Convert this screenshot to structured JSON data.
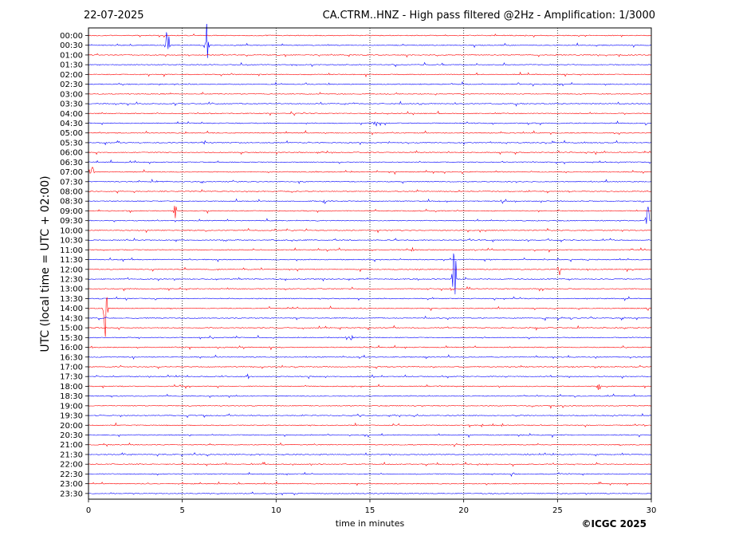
{
  "header": {
    "date": "22-07-2025",
    "title": "CA.CTRM..HNZ - High pass filtered @2Hz - Amplification: 1/3000"
  },
  "footer": {
    "copyright": "©ICGC 2025"
  },
  "chart_data": {
    "type": "line",
    "plot_kind": "helicorder",
    "xlabel": "time in minutes",
    "ylabel": "UTC (local time = UTC + 02:00)",
    "xlim": [
      0,
      30
    ],
    "xticks": [
      0,
      5,
      10,
      15,
      20,
      25,
      30
    ],
    "vertical_grid": [
      5,
      10,
      15,
      20,
      25
    ],
    "trace_colors": [
      "#ff0000",
      "#0000ff"
    ],
    "rows": [
      "00:00",
      "00:30",
      "01:00",
      "01:30",
      "02:00",
      "02:30",
      "03:00",
      "03:30",
      "04:00",
      "04:30",
      "05:00",
      "05:30",
      "06:00",
      "06:30",
      "07:00",
      "07:30",
      "08:00",
      "08:30",
      "09:00",
      "09:30",
      "10:00",
      "10:30",
      "11:00",
      "11:30",
      "12:00",
      "12:30",
      "13:00",
      "13:30",
      "14:00",
      "14:30",
      "15:00",
      "15:30",
      "16:00",
      "16:30",
      "17:00",
      "17:30",
      "18:00",
      "18:30",
      "19:00",
      "19:30",
      "20:00",
      "20:30",
      "21:00",
      "21:30",
      "22:00",
      "22:30",
      "23:00",
      "23:30"
    ],
    "events": [
      {
        "row": "00:30",
        "minute": 4.2,
        "amplitude": 2.5
      },
      {
        "row": "00:30",
        "minute": 6.3,
        "amplitude": 2.5
      },
      {
        "row": "04:30",
        "minute": 15.3,
        "amplitude": 0.4
      },
      {
        "row": "07:00",
        "minute": 0.2,
        "amplitude": 0.6
      },
      {
        "row": "08:30",
        "minute": 12.6,
        "amplitude": 0.3
      },
      {
        "row": "09:00",
        "minute": 4.6,
        "amplitude": 1.0
      },
      {
        "row": "09:30",
        "minute": 29.8,
        "amplitude": 2.0
      },
      {
        "row": "11:00",
        "minute": 17.3,
        "amplitude": 0.3
      },
      {
        "row": "12:00",
        "minute": 25.1,
        "amplitude": 0.8
      },
      {
        "row": "12:30",
        "minute": 19.5,
        "amplitude": 4.5
      },
      {
        "row": "14:00",
        "minute": 0.9,
        "amplitude": 3.0
      },
      {
        "row": "14:30",
        "minute": 24.3,
        "amplitude": 0.3
      },
      {
        "row": "15:30",
        "minute": 14.0,
        "amplitude": 0.4
      },
      {
        "row": "16:30",
        "minute": 14.5,
        "amplitude": 0.3
      },
      {
        "row": "17:30",
        "minute": 8.5,
        "amplitude": 0.3
      },
      {
        "row": "18:00",
        "minute": 27.2,
        "amplitude": 0.5
      },
      {
        "row": "20:00",
        "minute": 21.0,
        "amplitude": 0.3
      }
    ]
  }
}
